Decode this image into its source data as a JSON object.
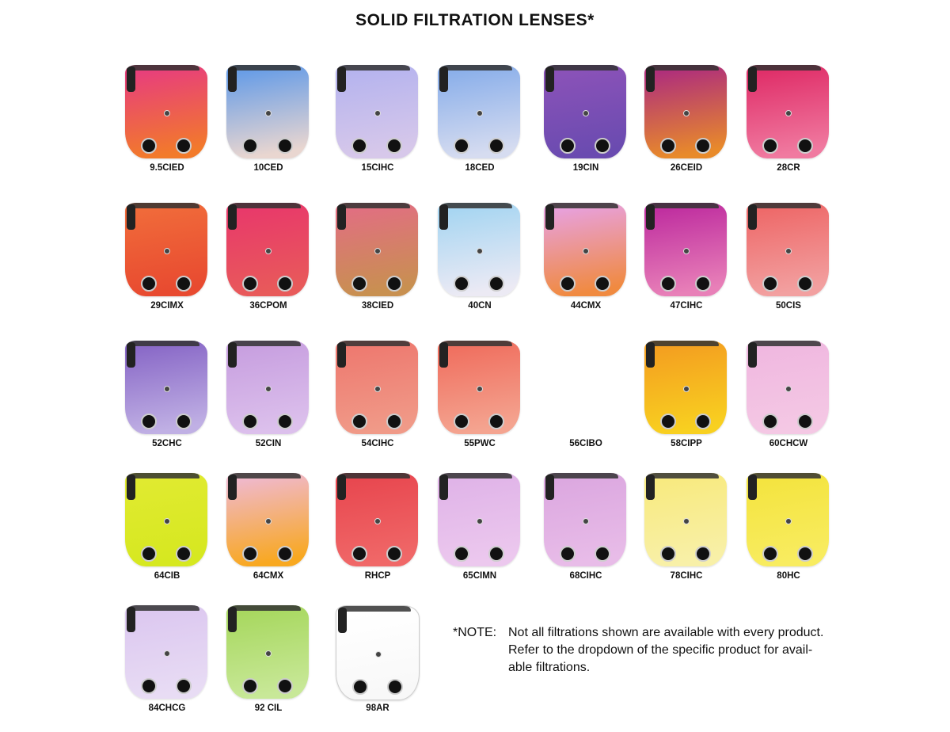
{
  "title": "SOLID FILTRATION LENSES*",
  "lenses": [
    {
      "code": "9.5CIED",
      "colors": [
        "#e8407a",
        "#f27a2a"
      ]
    },
    {
      "code": "10CED",
      "colors": [
        "#6a9ee6",
        "#e9d6d0"
      ]
    },
    {
      "code": "15CIHC",
      "colors": [
        "#b6b4ee",
        "#d7c8ea"
      ]
    },
    {
      "code": "18CED",
      "colors": [
        "#8cb0ea",
        "#d6dcf0"
      ]
    },
    {
      "code": "19CIN",
      "colors": [
        "#8a52b8",
        "#6a4bb0"
      ]
    },
    {
      "code": "26CEID",
      "colors": [
        "#b0307a",
        "#e88a2a"
      ]
    },
    {
      "code": "28CR",
      "colors": [
        "#e0306a",
        "#f07aa0"
      ]
    },
    {
      "code": "29CIMX",
      "colors": [
        "#f06a3a",
        "#e84a30"
      ]
    },
    {
      "code": "36CPOM",
      "colors": [
        "#e83a6a",
        "#e85a5a"
      ]
    },
    {
      "code": "38CIED",
      "colors": [
        "#e07080",
        "#c89050"
      ]
    },
    {
      "code": "40CN",
      "colors": [
        "#a8d6f2",
        "#eceaf4"
      ]
    },
    {
      "code": "44CMX",
      "colors": [
        "#e8a0d8",
        "#f08a40"
      ]
    },
    {
      "code": "47CIHC",
      "colors": [
        "#c030a0",
        "#e880b8"
      ]
    },
    {
      "code": "50CIS",
      "colors": [
        "#ee6a6a",
        "#f2a0a0"
      ]
    },
    {
      "code": "52CHC",
      "colors": [
        "#8a6ac8",
        "#c0b0e4"
      ]
    },
    {
      "code": "52CIN",
      "colors": [
        "#c8a0e0",
        "#dcc0ec"
      ]
    },
    {
      "code": "54CIHC",
      "colors": [
        "#ee7a70",
        "#f09a88"
      ]
    },
    {
      "code": "55PWC",
      "colors": [
        "#f07060",
        "#f4a490"
      ]
    },
    {
      "code": "56CIBO",
      "colors": []
    },
    {
      "code": "58CIPP",
      "colors": [
        "#f4a020",
        "#f8d020"
      ]
    },
    {
      "code": "60CHCW",
      "colors": [
        "#f0b8e0",
        "#f4c8e4"
      ]
    },
    {
      "code": "64CIB",
      "colors": [
        "#e0ea30",
        "#d6e820"
      ]
    },
    {
      "code": "64CMX",
      "colors": [
        "#f0b8c8",
        "#f8a820"
      ]
    },
    {
      "code": "RHCP",
      "colors": [
        "#e84850",
        "#f06868"
      ]
    },
    {
      "code": "65CIMN",
      "colors": [
        "#e0b4e8",
        "#ecc8ee"
      ]
    },
    {
      "code": "68CIHC",
      "colors": [
        "#dca8e0",
        "#e8bce8"
      ]
    },
    {
      "code": "78CIHC",
      "colors": [
        "#f8ea80",
        "#f8f0a8"
      ]
    },
    {
      "code": "80HC",
      "colors": [
        "#f4e440",
        "#f8ec60"
      ]
    },
    {
      "code": "84CHCG",
      "colors": [
        "#dcc8f0",
        "#e8dcf4"
      ]
    },
    {
      "code": "92 CIL",
      "colors": [
        "#a8d860",
        "#c8e898"
      ]
    },
    {
      "code": "98AR",
      "colors": [
        "#ffffff",
        "#f8f8f8"
      ]
    }
  ],
  "note": {
    "prefix": "*NOTE:",
    "line1": "Not all filtrations shown are available with every product.",
    "line2": "Refer to the dropdown of the specific product for avail-",
    "line3": "able filtrations."
  }
}
